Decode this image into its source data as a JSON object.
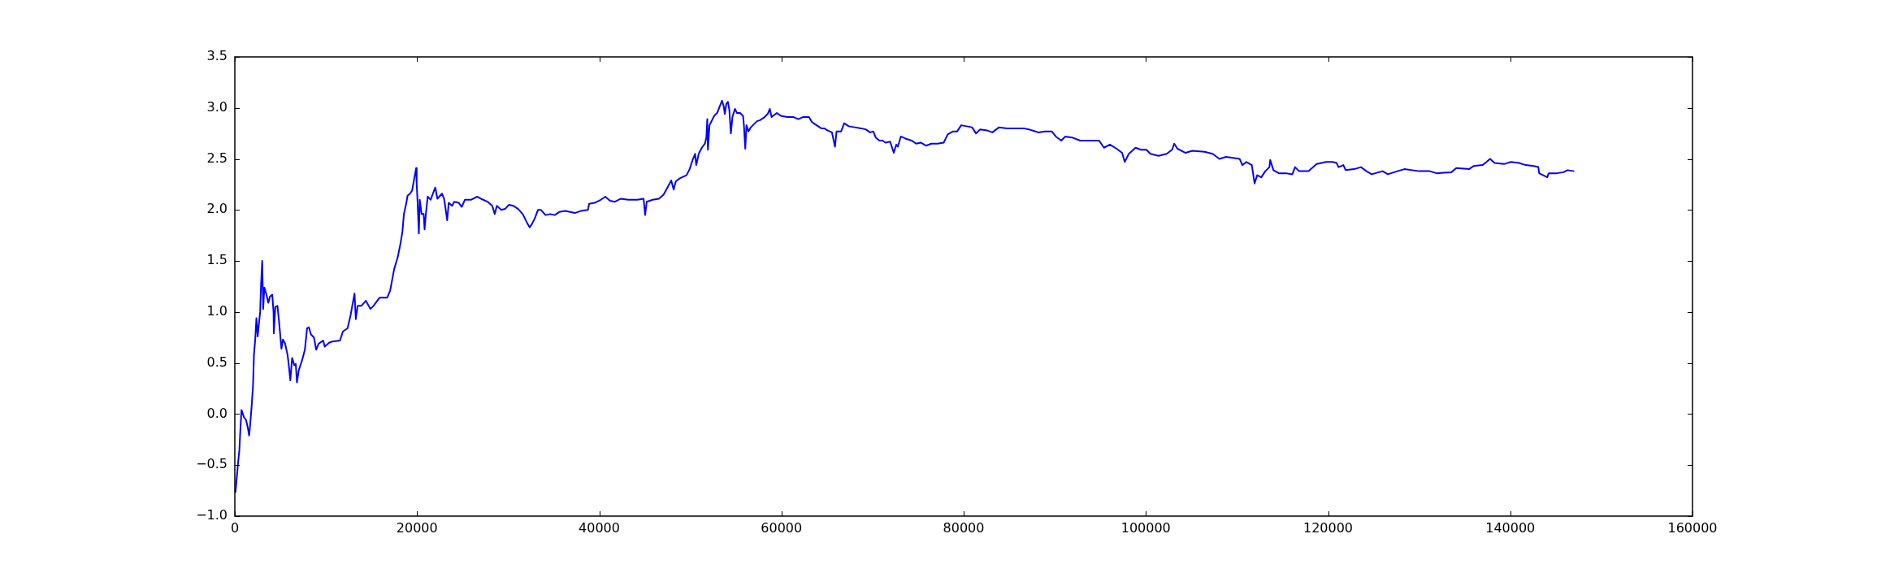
{
  "chart_data": {
    "type": "line",
    "line_style": "solid",
    "xlim": [
      0,
      160000
    ],
    "xticks": [
      0,
      20000,
      40000,
      60000,
      80000,
      100000,
      120000,
      140000,
      160000
    ],
    "ylim": [
      -1,
      3.5
    ],
    "yticks": [
      {
        "value": -1,
        "label": "−1.0"
      },
      {
        "value": -0.5,
        "label": "−0.5"
      },
      {
        "value": 0,
        "label": "0.0"
      },
      {
        "value": 0.5,
        "label": "0.5"
      },
      {
        "value": 1,
        "label": "1.0"
      },
      {
        "value": 1.5,
        "label": "1.5"
      },
      {
        "value": 2,
        "label": "2.0"
      },
      {
        "value": 2.5,
        "label": "2.5"
      },
      {
        "value": 3,
        "label": "3.0"
      },
      {
        "value": 3.5,
        "label": "3.5"
      }
    ],
    "x": [
      70,
      334,
      500,
      600,
      735,
      1000,
      1240,
      1440,
      1570,
      1670,
      1840,
      2000,
      2100,
      2240,
      2370,
      2510,
      2640,
      2780,
      2880,
      3010,
      3110,
      3240,
      3440,
      3680,
      3850,
      4110,
      4250,
      4280,
      4450,
      4680,
      4850,
      5120,
      5280,
      5520,
      5790,
      5950,
      6090,
      6290,
      6520,
      6690,
      6820,
      7020,
      7360,
      7690,
      7930,
      8130,
      8360,
      8690,
      8930,
      9200,
      9700,
      9870,
      10370,
      10700,
      11540,
      11870,
      12370,
      12710,
      12870,
      13140,
      13280,
      13480,
      13880,
      14380,
      14880,
      15220,
      15880,
      16720,
      17050,
      17490,
      17890,
      18160,
      18390,
      18560,
      18830,
      18960,
      19230,
      19460,
      19660,
      19900,
      19960,
      20060,
      20200,
      20300,
      20500,
      20730,
      20830,
      20970,
      21170,
      21500,
      21740,
      22000,
      22240,
      22740,
      22970,
      23170,
      23310,
      23480,
      23850,
      24080,
      24580,
      24910,
      25250,
      25920,
      26590,
      27260,
      27760,
      28260,
      28530,
      28760,
      29260,
      29660,
      30100,
      30600,
      31100,
      31600,
      32100,
      32370,
      32600,
      32940,
      33270,
      33610,
      34110,
      34610,
      35110,
      35610,
      36280,
      37310,
      37980,
      38760,
      38890,
      39500,
      40170,
      40670,
      41180,
      41680,
      42350,
      43190,
      44200,
      44870,
      45040,
      45210,
      45880,
      46550,
      47060,
      47490,
      47900,
      48170,
      48400,
      48840,
      49580,
      49920,
      50250,
      50520,
      50650,
      50920,
      51260,
      51600,
      51760,
      51860,
      51930,
      52100,
      52270,
      52600,
      52940,
      53200,
      53480,
      53680,
      53780,
      53950,
      54120,
      54280,
      54450,
      54620,
      54890,
      55120,
      55460,
      55790,
      55890,
      56030,
      56160,
      56370,
      56640,
      56970,
      57310,
      57650,
      58150,
      58490,
      58720,
      58920,
      59490,
      60000,
      60670,
      61340,
      61850,
      62350,
      63020,
      63360,
      63690,
      64030,
      64370,
      64700,
      65040,
      65540,
      65880,
      66050,
      66550,
      66890,
      67390,
      68060,
      68730,
      69240,
      69740,
      70080,
      70350,
      70750,
      71090,
      71420,
      71930,
      72330,
      72600,
      72770,
      73110,
      73610,
      74280,
      74790,
      75290,
      75860,
      76470,
      77140,
      77810,
      78250,
      78840,
      79290,
      79730,
      80330,
      80920,
      81360,
      81810,
      82550,
      83150,
      83890,
      84780,
      85670,
      86560,
      87150,
      88190,
      88930,
      89670,
      90120,
      90710,
      91160,
      91900,
      92790,
      93830,
      94870,
      95400,
      96050,
      96790,
      97390,
      97680,
      98130,
      98870,
      99460,
      100060,
      100500,
      101390,
      102280,
      102880,
      103110,
      103470,
      104360,
      105100,
      106440,
      107330,
      108070,
      108810,
      110300,
      110590,
      111040,
      111630,
      111930,
      112220,
      112670,
      113110,
      113560,
      113650,
      114000,
      114600,
      115340,
      116080,
      116380,
      116820,
      117860,
      118750,
      119790,
      120500,
      120940,
      121150,
      121680,
      121930,
      122870,
      123610,
      124210,
      124790,
      125980,
      126570,
      127610,
      128360,
      129990,
      131170,
      131910,
      133540,
      134070,
      135470,
      135970,
      136950,
      137390,
      137780,
      138280,
      139320,
      140060,
      140950,
      141690,
      142580,
      143080,
      143170,
      144060,
      144210,
      145100,
      145840,
      146280,
      147020
    ],
    "series": [
      {
        "color": "#0000ff",
        "values": [
          -0.77,
          -0.5,
          -0.35,
          -0.17,
          0.04,
          -0.03,
          -0.06,
          -0.14,
          -0.21,
          -0.12,
          0.07,
          0.28,
          0.58,
          0.73,
          0.94,
          0.76,
          0.88,
          1.0,
          1.27,
          1.5,
          1.03,
          1.24,
          1.18,
          1.09,
          1.15,
          1.17,
          1.0,
          0.79,
          1.05,
          1.06,
          0.91,
          0.64,
          0.73,
          0.69,
          0.58,
          0.46,
          0.33,
          0.55,
          0.48,
          0.49,
          0.31,
          0.43,
          0.52,
          0.63,
          0.84,
          0.85,
          0.78,
          0.75,
          0.63,
          0.69,
          0.72,
          0.66,
          0.7,
          0.71,
          0.72,
          0.81,
          0.84,
          0.97,
          1.05,
          1.18,
          0.93,
          1.06,
          1.06,
          1.11,
          1.03,
          1.06,
          1.14,
          1.14,
          1.21,
          1.42,
          1.54,
          1.66,
          1.78,
          1.96,
          2.07,
          2.14,
          2.16,
          2.19,
          2.29,
          2.41,
          2.26,
          2.08,
          1.77,
          2.1,
          1.96,
          1.96,
          1.81,
          1.96,
          2.13,
          2.1,
          2.16,
          2.22,
          2.11,
          2.16,
          2.11,
          1.99,
          1.9,
          2.07,
          2.04,
          2.08,
          2.07,
          2.03,
          2.1,
          2.1,
          2.13,
          2.1,
          2.08,
          2.04,
          1.96,
          2.04,
          2.0,
          2.01,
          2.05,
          2.04,
          2.01,
          1.96,
          1.87,
          1.83,
          1.86,
          1.92,
          2.0,
          2.0,
          1.95,
          1.96,
          1.95,
          1.98,
          1.99,
          1.97,
          1.99,
          2.0,
          2.06,
          2.07,
          2.1,
          2.13,
          2.09,
          2.08,
          2.11,
          2.1,
          2.1,
          2.11,
          1.95,
          2.08,
          2.1,
          2.11,
          2.15,
          2.22,
          2.29,
          2.2,
          2.28,
          2.31,
          2.34,
          2.4,
          2.49,
          2.55,
          2.44,
          2.55,
          2.61,
          2.65,
          2.71,
          2.89,
          2.59,
          2.83,
          2.86,
          2.92,
          2.95,
          3.01,
          3.07,
          3.01,
          2.94,
          3.04,
          3.06,
          2.98,
          2.75,
          2.91,
          2.99,
          2.95,
          2.95,
          2.92,
          2.82,
          2.6,
          2.83,
          2.77,
          2.81,
          2.84,
          2.87,
          2.88,
          2.91,
          2.94,
          2.99,
          2.91,
          2.95,
          2.92,
          2.91,
          2.91,
          2.89,
          2.91,
          2.91,
          2.86,
          2.84,
          2.82,
          2.8,
          2.8,
          2.78,
          2.76,
          2.62,
          2.77,
          2.77,
          2.85,
          2.82,
          2.81,
          2.8,
          2.79,
          2.76,
          2.77,
          2.71,
          2.68,
          2.68,
          2.66,
          2.67,
          2.56,
          2.64,
          2.62,
          2.72,
          2.7,
          2.68,
          2.65,
          2.66,
          2.63,
          2.65,
          2.65,
          2.66,
          2.74,
          2.77,
          2.77,
          2.83,
          2.82,
          2.81,
          2.75,
          2.79,
          2.78,
          2.76,
          2.81,
          2.8,
          2.8,
          2.8,
          2.79,
          2.76,
          2.77,
          2.77,
          2.72,
          2.68,
          2.72,
          2.71,
          2.68,
          2.68,
          2.68,
          2.61,
          2.64,
          2.6,
          2.56,
          2.47,
          2.55,
          2.61,
          2.59,
          2.59,
          2.55,
          2.53,
          2.55,
          2.59,
          2.65,
          2.6,
          2.56,
          2.58,
          2.57,
          2.55,
          2.5,
          2.52,
          2.5,
          2.44,
          2.47,
          2.44,
          2.26,
          2.34,
          2.32,
          2.38,
          2.42,
          2.49,
          2.39,
          2.36,
          2.36,
          2.35,
          2.42,
          2.38,
          2.38,
          2.45,
          2.47,
          2.47,
          2.46,
          2.42,
          2.44,
          2.39,
          2.4,
          2.42,
          2.38,
          2.35,
          2.38,
          2.35,
          2.38,
          2.4,
          2.38,
          2.38,
          2.36,
          2.37,
          2.41,
          2.4,
          2.43,
          2.44,
          2.47,
          2.5,
          2.46,
          2.45,
          2.47,
          2.46,
          2.44,
          2.43,
          2.42,
          2.36,
          2.32,
          2.36,
          2.36,
          2.37,
          2.39,
          2.38
        ]
      }
    ]
  }
}
